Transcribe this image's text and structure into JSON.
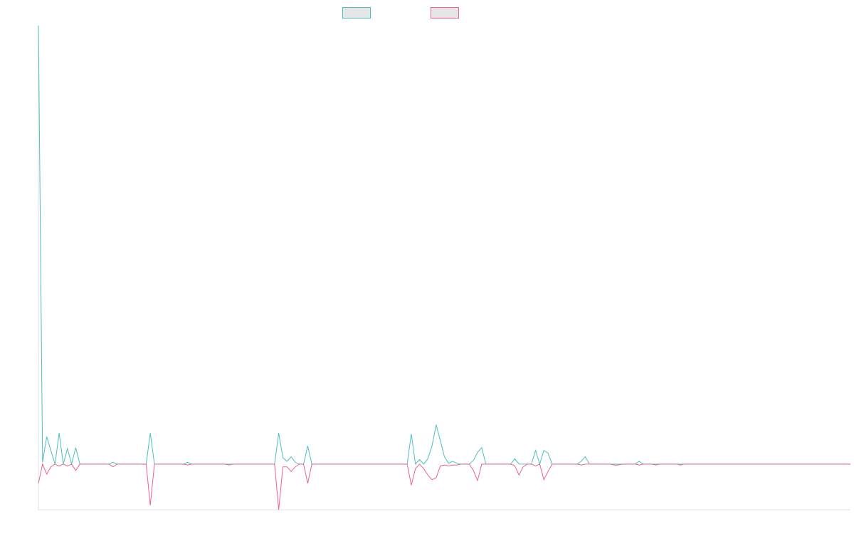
{
  "chart_data": {
    "type": "line",
    "title": "",
    "xlabel": "",
    "ylabel": "",
    "grid": false,
    "legend_position": "top-center",
    "ylim": [
      -50,
      480
    ],
    "x_count": 197,
    "series": [
      {
        "color": "#4bc0c0",
        "legend_fill": "#e6e6e6",
        "values": [
          480,
          2,
          30,
          15,
          0,
          34,
          0,
          17,
          0,
          18,
          0,
          0,
          0,
          0,
          0,
          0,
          0,
          0,
          2,
          0,
          0,
          0,
          0,
          0,
          0,
          0,
          0,
          34,
          0,
          0,
          0,
          0,
          0,
          0,
          0,
          0,
          2,
          0,
          0,
          0,
          0,
          0,
          0,
          0,
          0,
          0,
          0,
          0,
          0,
          0,
          0,
          0,
          0,
          0,
          0,
          0,
          0,
          0,
          34,
          7,
          3,
          8,
          2,
          0,
          0,
          20,
          0,
          0,
          0,
          0,
          0,
          0,
          0,
          0,
          0,
          0,
          0,
          0,
          0,
          0,
          0,
          0,
          0,
          0,
          0,
          0,
          0,
          0,
          0,
          0,
          33,
          0,
          5,
          0,
          6,
          20,
          43,
          26,
          8,
          1,
          3,
          1,
          0,
          0,
          0,
          4,
          13,
          18,
          0,
          0,
          0,
          0,
          0,
          0,
          0,
          6,
          0,
          0,
          0,
          0,
          15,
          0,
          15,
          12,
          0,
          0,
          0,
          0,
          0,
          0,
          0,
          3,
          8,
          0,
          0,
          0,
          0,
          0,
          0,
          0,
          0,
          0,
          0,
          0,
          0,
          3,
          0,
          0,
          0,
          0,
          0,
          0,
          0,
          0,
          0,
          0,
          0,
          0,
          0,
          0,
          0,
          0,
          0,
          0,
          0,
          0,
          0,
          0,
          0,
          0,
          0,
          0,
          0,
          0,
          0,
          0,
          0,
          0,
          0,
          0,
          0,
          0,
          0,
          0,
          0,
          0,
          0,
          0,
          0,
          0,
          0,
          0,
          0,
          0,
          0,
          0,
          0
        ]
      },
      {
        "color": "#f06090",
        "legend_fill": "#e6e6e6",
        "values": [
          -21,
          0,
          -11,
          -3,
          0,
          -2,
          0,
          -2,
          0,
          -7,
          0,
          0,
          0,
          0,
          0,
          0,
          0,
          0,
          -3,
          0,
          0,
          0,
          0,
          0,
          0,
          0,
          0,
          -45,
          0,
          0,
          0,
          0,
          0,
          0,
          0,
          0,
          -1,
          0,
          0,
          0,
          0,
          0,
          0,
          0,
          0,
          0,
          -1,
          0,
          0,
          0,
          0,
          0,
          0,
          0,
          0,
          0,
          0,
          0,
          -50,
          -3,
          -3,
          -8,
          -3,
          0,
          0,
          -21,
          0,
          0,
          0,
          0,
          0,
          0,
          0,
          0,
          0,
          0,
          0,
          0,
          0,
          0,
          0,
          0,
          0,
          0,
          0,
          0,
          0,
          0,
          0,
          0,
          -23,
          -5,
          0,
          -5,
          -12,
          -17,
          -15,
          -2,
          -1,
          -2,
          -1,
          -1,
          0,
          0,
          0,
          -7,
          -18,
          0,
          0,
          0,
          0,
          0,
          0,
          0,
          0,
          -2,
          -12,
          -3,
          0,
          0,
          -2,
          0,
          -17,
          -8,
          0,
          0,
          0,
          0,
          0,
          0,
          0,
          -1,
          0,
          0,
          0,
          0,
          0,
          0,
          0,
          -1,
          -1,
          0,
          0,
          0,
          0,
          -1,
          0,
          0,
          0,
          -1,
          0,
          0,
          0,
          0,
          0,
          -1,
          0,
          0,
          0,
          0,
          0,
          0,
          0,
          0,
          0,
          0,
          0,
          0,
          0,
          0,
          0,
          0,
          0,
          0,
          0,
          0,
          0,
          0,
          0,
          0,
          0,
          0,
          0,
          0,
          0,
          0,
          0,
          0,
          0,
          0,
          0,
          0,
          0,
          0,
          0,
          0,
          0
        ]
      }
    ],
    "axis_color": "#e0e0e0"
  }
}
